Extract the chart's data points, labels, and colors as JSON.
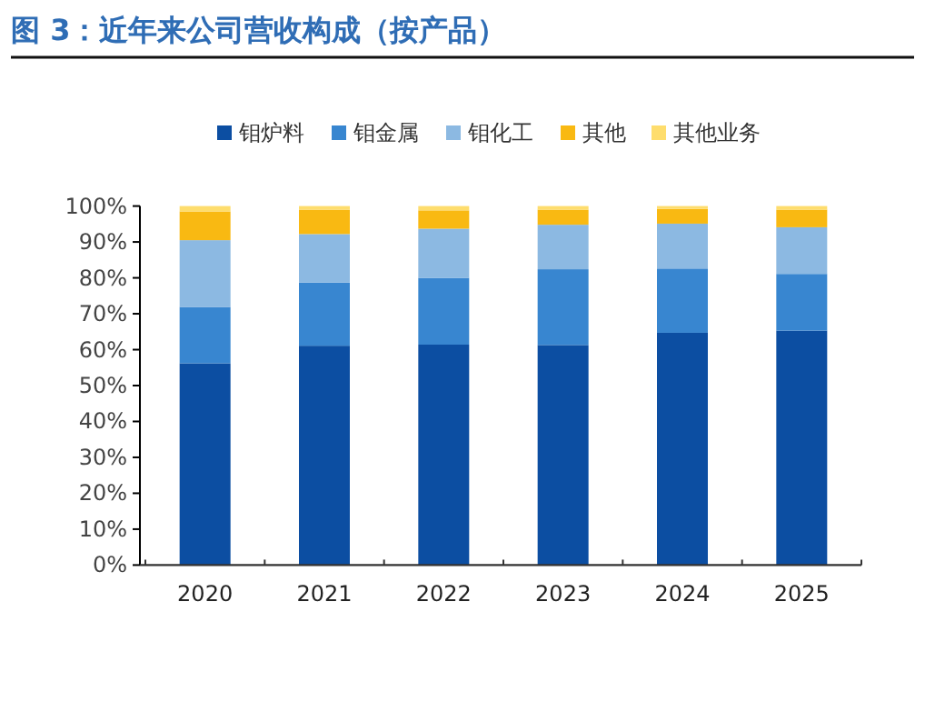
{
  "chart_data": {
    "type": "bar",
    "title": "图 3：近年来公司营收构成（按产品）",
    "categories": [
      "2020",
      "2021",
      "2022",
      "2023",
      "2024",
      "2025"
    ],
    "series": [
      {
        "name": "钼炉料",
        "color": "#0c4ea2",
        "values": [
          56.2,
          61.1,
          61.4,
          61.3,
          64.7,
          65.3
        ]
      },
      {
        "name": "钼金属",
        "color": "#3886d0",
        "values": [
          15.7,
          17.6,
          18.6,
          21.1,
          17.9,
          15.8
        ]
      },
      {
        "name": "钼化工",
        "color": "#8cb9e2",
        "values": [
          18.6,
          13.5,
          13.7,
          12.4,
          12.5,
          13.0
        ]
      },
      {
        "name": "其他",
        "color": "#f9b912",
        "values": [
          8.0,
          6.8,
          5.1,
          4.2,
          4.1,
          4.9
        ]
      },
      {
        "name": "其他业务",
        "color": "#fedd6d",
        "values": [
          1.5,
          1.0,
          1.2,
          1.0,
          0.8,
          1.0
        ]
      }
    ],
    "stacked": true,
    "ylim": [
      0,
      100
    ],
    "yticks": [
      {
        "value": 0,
        "label": "0%"
      },
      {
        "value": 10,
        "label": "10%"
      },
      {
        "value": 20,
        "label": "20%"
      },
      {
        "value": 30,
        "label": "30%"
      },
      {
        "value": 40,
        "label": "40%"
      },
      {
        "value": 50,
        "label": "50%"
      },
      {
        "value": 60,
        "label": "60%"
      },
      {
        "value": 70,
        "label": "70%"
      },
      {
        "value": 80,
        "label": "80%"
      },
      {
        "value": 90,
        "label": "90%"
      },
      {
        "value": 100,
        "label": "100%"
      }
    ],
    "legend": "top",
    "grid": false
  }
}
